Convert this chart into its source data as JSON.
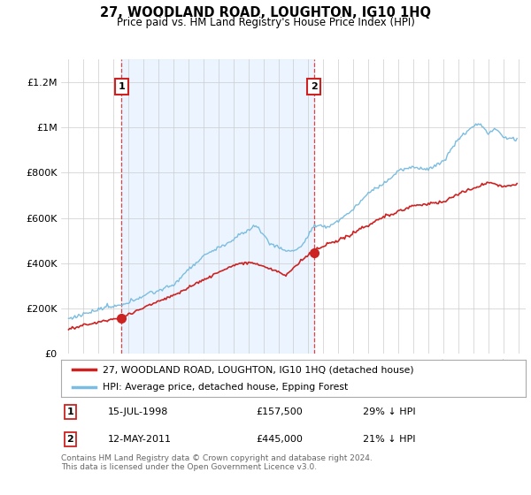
{
  "title": "27, WOODLAND ROAD, LOUGHTON, IG10 1HQ",
  "subtitle": "Price paid vs. HM Land Registry's House Price Index (HPI)",
  "background_color": "#ffffff",
  "plot_background": "#ffffff",
  "sale1_date": 1998.54,
  "sale1_price": 157500,
  "sale2_date": 2011.36,
  "sale2_price": 445000,
  "legend_line1": "27, WOODLAND ROAD, LOUGHTON, IG10 1HQ (detached house)",
  "legend_line2": "HPI: Average price, detached house, Epping Forest",
  "footnote1": "Contains HM Land Registry data © Crown copyright and database right 2024.",
  "footnote2": "This data is licensed under the Open Government Licence v3.0.",
  "ylabel_ticks": [
    "£0",
    "£200K",
    "£400K",
    "£600K",
    "£800K",
    "£1M",
    "£1.2M"
  ],
  "ylabel_values": [
    0,
    200000,
    400000,
    600000,
    800000,
    1000000,
    1200000
  ],
  "ylim": [
    0,
    1300000
  ],
  "xlim_start": 1994.5,
  "xlim_end": 2025.5,
  "hpi_color": "#7bbde0",
  "price_color": "#cc2222",
  "dashed_color": "#dd4444",
  "shade_color": "#ddeeff",
  "box_edge_color": "#cc2222"
}
